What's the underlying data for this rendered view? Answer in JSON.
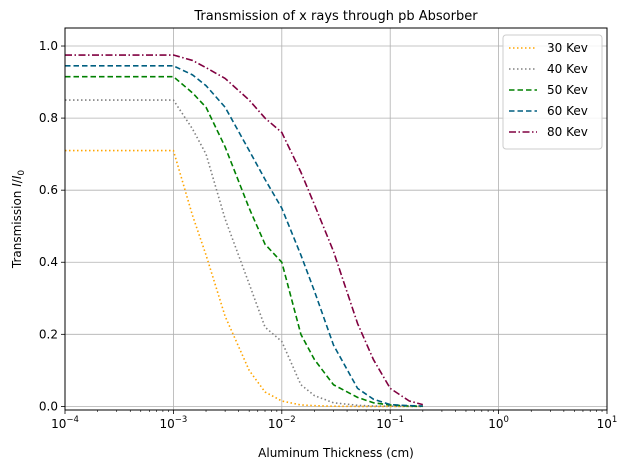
{
  "chart_data": {
    "type": "line",
    "title": "Transmission of x rays through pb Absorber",
    "xlabel": "Aluminum Thickness (cm)",
    "ylabel_main": "Transmission ",
    "ylabel_I": "I",
    "ylabel_slash": "/",
    "ylabel_I0": "I",
    "ylabel_sub": "0",
    "xscale": "log",
    "xlim": [
      0.0001,
      10
    ],
    "ylim": [
      -0.01,
      1.05
    ],
    "grid": true,
    "legend_position": "top-right",
    "xticks": [
      {
        "value": 0.0001,
        "base": "10",
        "exp": "−4"
      },
      {
        "value": 0.001,
        "base": "10",
        "exp": "−3"
      },
      {
        "value": 0.01,
        "base": "10",
        "exp": "−2"
      },
      {
        "value": 0.1,
        "base": "10",
        "exp": "−1"
      },
      {
        "value": 1,
        "base": "10",
        "exp": "0"
      },
      {
        "value": 10,
        "base": "10",
        "exp": "1"
      }
    ],
    "yticks": [
      {
        "value": 0.0,
        "label": "0.0"
      },
      {
        "value": 0.2,
        "label": "0.2"
      },
      {
        "value": 0.4,
        "label": "0.4"
      },
      {
        "value": 0.6,
        "label": "0.6"
      },
      {
        "value": 0.8,
        "label": "0.8"
      },
      {
        "value": 1.0,
        "label": "1.0"
      }
    ],
    "x": [
      0.0001,
      0.0002,
      0.0005,
      0.001,
      0.0015,
      0.002,
      0.003,
      0.005,
      0.007,
      0.01,
      0.015,
      0.02,
      0.03,
      0.05,
      0.07,
      0.1,
      0.15,
      0.2
    ],
    "series": [
      {
        "name": "30 Kev",
        "color": "#ffa500",
        "dash": "1.5,2.5",
        "values": [
          0.71,
          0.71,
          0.71,
          0.71,
          0.53,
          0.42,
          0.25,
          0.1,
          0.04,
          0.015,
          0.004,
          0.002,
          0.0005,
          0.0,
          0.0,
          0.0,
          0.0,
          0.0
        ]
      },
      {
        "name": "40 Kev",
        "color": "#808080",
        "dash": "1.5,2.5",
        "values": [
          0.85,
          0.85,
          0.85,
          0.85,
          0.77,
          0.7,
          0.52,
          0.34,
          0.22,
          0.18,
          0.06,
          0.03,
          0.01,
          0.003,
          0.001,
          0.0005,
          0.0,
          0.0
        ]
      },
      {
        "name": "50 Kev",
        "color": "#008000",
        "dash": "5.5,3",
        "values": [
          0.915,
          0.915,
          0.915,
          0.915,
          0.87,
          0.83,
          0.72,
          0.55,
          0.45,
          0.4,
          0.2,
          0.13,
          0.06,
          0.025,
          0.01,
          0.004,
          0.001,
          0.0005
        ]
      },
      {
        "name": "60 Kev",
        "color": "#005f80",
        "dash": "5.5,3",
        "values": [
          0.945,
          0.945,
          0.945,
          0.945,
          0.92,
          0.89,
          0.83,
          0.71,
          0.63,
          0.55,
          0.42,
          0.32,
          0.17,
          0.05,
          0.02,
          0.005,
          0.002,
          0.001
        ]
      },
      {
        "name": "80 Kev",
        "color": "#800040",
        "dash": "7,2.5,1.5,2.5",
        "values": [
          0.975,
          0.975,
          0.975,
          0.975,
          0.96,
          0.94,
          0.91,
          0.85,
          0.8,
          0.76,
          0.65,
          0.56,
          0.43,
          0.23,
          0.13,
          0.05,
          0.015,
          0.005
        ]
      }
    ]
  }
}
